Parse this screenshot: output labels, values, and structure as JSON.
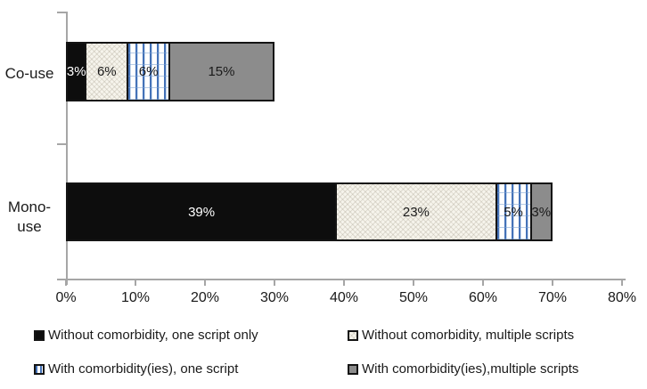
{
  "chart_data": {
    "type": "bar",
    "orientation": "horizontal",
    "stacked": true,
    "title": "",
    "xlabel": "",
    "ylabel": "",
    "xlim": [
      0,
      80
    ],
    "grid": false,
    "legend_position": "bottom",
    "categories": [
      "Co-use",
      "Mono-use"
    ],
    "series": [
      {
        "name": "Without comorbidity, one script only",
        "values": [
          3,
          39
        ],
        "fill": "fill-solid-black",
        "color": "#0d0d0d",
        "label_color": "#ffffff"
      },
      {
        "name": "Without comorbidity, multiple scripts",
        "values": [
          6,
          23
        ],
        "fill": "fill-dotted-cream",
        "color": "#f6f4ec",
        "label_color": "#1a1a1a"
      },
      {
        "name": "With comorbidity(ies), one script",
        "values": [
          6,
          5
        ],
        "fill": "fill-blue-vertical-stripes",
        "color": "#4472b8",
        "label_color": "#1a1a1a"
      },
      {
        "name": "With comorbidity(ies),multiple scripts",
        "values": [
          15,
          3
        ],
        "fill": "fill-solid-gray",
        "color": "#8c8c8c",
        "label_color": "#1a1a1a"
      }
    ],
    "data_labels": [
      [
        "3%",
        "6%",
        "6%",
        "15%"
      ],
      [
        "39%",
        "23%",
        "5%",
        "3%"
      ]
    ],
    "x_tick_labels": [
      "0%",
      "10%",
      "20%",
      "30%",
      "40%",
      "50%",
      "60%",
      "70%",
      "80%"
    ]
  },
  "category_labels": {
    "co_use": "Co-use",
    "mono_line1": "Mono-",
    "mono_line2": "use"
  },
  "colors": {
    "axis": "#a6a6a6",
    "segment_border": "#141414",
    "text": "#1a1a1a",
    "black_fill": "#0d0d0d",
    "cream_fill": "#f6f4ec",
    "stripe_blue": "#4472b8",
    "gray_fill": "#8c8c8c",
    "background": "#ffffff"
  }
}
